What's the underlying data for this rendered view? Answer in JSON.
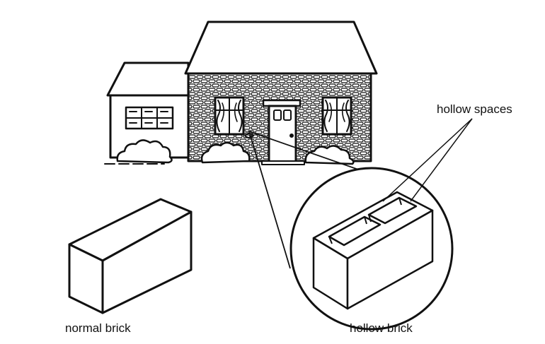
{
  "labels": {
    "hollow_spaces": "hollow spaces",
    "normal_brick": "normal brick",
    "hollow_brick": "hollow brick"
  },
  "colors": {
    "ink": "#111111",
    "paper": "#ffffff"
  }
}
